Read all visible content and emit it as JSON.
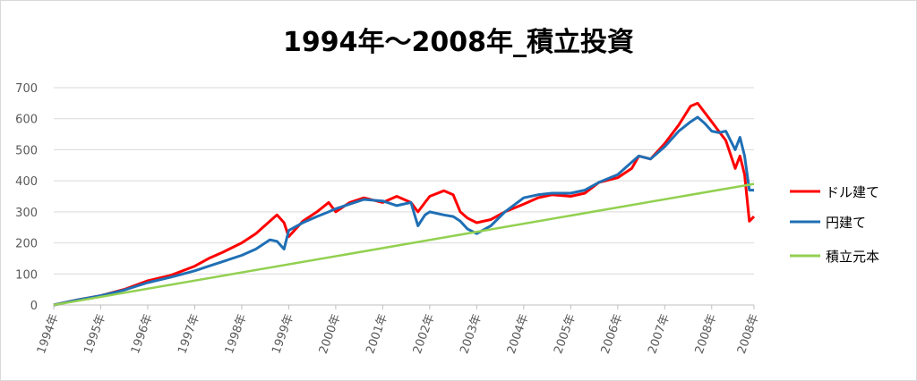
{
  "chart_data": {
    "type": "line",
    "title": "1994年～2008年_積立投資",
    "xlabel": "",
    "ylabel": "",
    "x_tick_labels": [
      "1994年",
      "1995年",
      "1996年",
      "1997年",
      "1998年",
      "1999年",
      "2000年",
      "2001年",
      "2002年",
      "2003年",
      "2004年",
      "2005年",
      "2006年",
      "2007年",
      "2008年",
      "2008年"
    ],
    "x_tick_positions": [
      1994.0,
      1995.0,
      1996.0,
      1997.0,
      1998.0,
      1999.0,
      2000.0,
      2001.0,
      2002.0,
      2003.0,
      2004.0,
      2005.0,
      2006.0,
      2007.0,
      2008.0,
      2008.9
    ],
    "xlim": [
      1994.0,
      2008.9
    ],
    "y_tick_labels": [
      "0",
      "100",
      "200",
      "300",
      "400",
      "500",
      "600",
      "700"
    ],
    "ylim": [
      0,
      700
    ],
    "grid": true,
    "legend_placement": "right",
    "series": [
      {
        "name": "ドル建て",
        "color": "#ff0000",
        "x": [
          1994.0,
          1994.5,
          1995.0,
          1995.5,
          1996.0,
          1996.5,
          1997.0,
          1997.3,
          1997.6,
          1998.0,
          1998.3,
          1998.6,
          1998.75,
          1998.9,
          1999.0,
          1999.3,
          1999.6,
          1999.85,
          2000.0,
          2000.3,
          2000.6,
          2001.0,
          2001.3,
          2001.6,
          2001.75,
          2001.9,
          2002.0,
          2002.3,
          2002.5,
          2002.65,
          2002.8,
          2003.0,
          2003.3,
          2003.6,
          2004.0,
          2004.3,
          2004.6,
          2005.0,
          2005.3,
          2005.6,
          2006.0,
          2006.3,
          2006.45,
          2006.7,
          2007.0,
          2007.3,
          2007.55,
          2007.7,
          2007.85,
          2008.0,
          2008.15,
          2008.3,
          2008.5,
          2008.6,
          2008.7,
          2008.8,
          2008.9
        ],
        "values": [
          0,
          16,
          30,
          50,
          78,
          96,
          125,
          150,
          170,
          200,
          230,
          270,
          290,
          265,
          220,
          270,
          300,
          330,
          300,
          330,
          345,
          330,
          350,
          330,
          300,
          330,
          350,
          368,
          355,
          300,
          280,
          265,
          275,
          300,
          325,
          345,
          355,
          350,
          360,
          395,
          410,
          440,
          480,
          470,
          520,
          580,
          640,
          650,
          620,
          590,
          560,
          530,
          440,
          480,
          420,
          270,
          285
        ]
      },
      {
        "name": "円建て",
        "color": "#1f6fb5",
        "x": [
          1994.0,
          1994.5,
          1995.0,
          1995.5,
          1996.0,
          1996.5,
          1997.0,
          1997.3,
          1997.6,
          1998.0,
          1998.3,
          1998.6,
          1998.75,
          1998.9,
          1999.0,
          1999.3,
          1999.6,
          1999.85,
          2000.0,
          2000.3,
          2000.6,
          2001.0,
          2001.3,
          2001.6,
          2001.75,
          2001.9,
          2002.0,
          2002.3,
          2002.5,
          2002.65,
          2002.8,
          2003.0,
          2003.3,
          2003.6,
          2004.0,
          2004.3,
          2004.6,
          2005.0,
          2005.3,
          2005.6,
          2006.0,
          2006.3,
          2006.45,
          2006.7,
          2007.0,
          2007.3,
          2007.55,
          2007.7,
          2007.85,
          2008.0,
          2008.15,
          2008.3,
          2008.5,
          2008.6,
          2008.7,
          2008.8,
          2008.9
        ],
        "values": [
          0,
          16,
          30,
          48,
          72,
          90,
          110,
          125,
          140,
          160,
          180,
          210,
          205,
          180,
          240,
          265,
          285,
          300,
          310,
          325,
          340,
          335,
          320,
          330,
          255,
          290,
          300,
          290,
          285,
          270,
          245,
          230,
          255,
          300,
          345,
          355,
          360,
          360,
          370,
          395,
          420,
          460,
          480,
          470,
          510,
          560,
          590,
          605,
          585,
          560,
          555,
          560,
          500,
          540,
          480,
          370,
          370
        ]
      },
      {
        "name": "積立元本",
        "color": "#92d050",
        "x": [
          1994.0,
          2008.9
        ],
        "values": [
          0,
          390
        ]
      }
    ]
  }
}
